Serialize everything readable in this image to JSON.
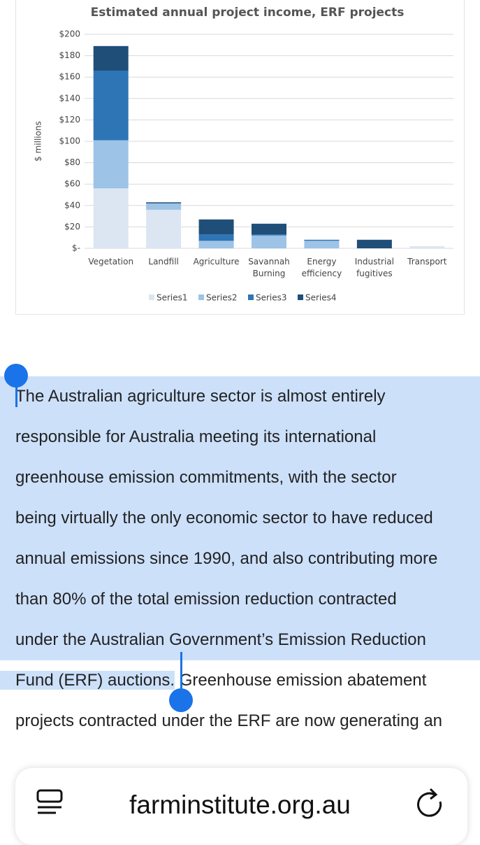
{
  "chart_data": {
    "type": "bar",
    "stacked": true,
    "title": "Estimated annual project income, ERF projects",
    "ylabel": "$ millions",
    "categories": [
      "Vegetation",
      "Landfill",
      "Agriculture",
      "Savannah Burning",
      "Energy efficiency",
      "Industrial fugitives",
      "Transport"
    ],
    "series": [
      {
        "name": "Series1",
        "color": "#dce6f2",
        "values": [
          56,
          36,
          0,
          0,
          0,
          0,
          2
        ]
      },
      {
        "name": "Series2",
        "color": "#9dc3e6",
        "values": [
          45,
          6,
          7,
          12,
          7,
          0,
          0
        ]
      },
      {
        "name": "Series3",
        "color": "#2e75b6",
        "values": [
          65,
          0,
          6,
          1,
          1,
          0,
          0
        ]
      },
      {
        "name": "Series4",
        "color": "#1f4e79",
        "values": [
          23,
          1,
          14,
          10,
          0,
          8,
          0
        ]
      }
    ],
    "ylim": [
      0,
      200
    ],
    "yticks": [
      {
        "value": 0,
        "label": "$-"
      },
      {
        "value": 20,
        "label": "$20"
      },
      {
        "value": 40,
        "label": "$40"
      },
      {
        "value": 60,
        "label": "$60"
      },
      {
        "value": 80,
        "label": "$80"
      },
      {
        "value": 100,
        "label": "$100"
      },
      {
        "value": 120,
        "label": "$120"
      },
      {
        "value": 140,
        "label": "$140"
      },
      {
        "value": 160,
        "label": "$160"
      },
      {
        "value": 180,
        "label": "$180"
      },
      {
        "value": 200,
        "label": "$200"
      }
    ],
    "grid": true,
    "legend": "bottom"
  },
  "article": {
    "selected_lines": [
      "The Australian agriculture sector is almost entirely",
      "responsible for Australia meeting its international",
      "greenhouse emission commitments, with the sector",
      "being virtually the only economic sector to have reduced",
      "annual emissions since 1990, and also contributing more",
      "than 80% of the total emission reduction contracted",
      "under the Australian Government’s Emission Reduction",
      "Fund (ERF) auctions."
    ],
    "unselected_lines": [
      "Greenhouse emission abatement",
      "projects contracted under the ERF are now generating an"
    ]
  },
  "browser": {
    "url": "farminstitute.org.au"
  }
}
